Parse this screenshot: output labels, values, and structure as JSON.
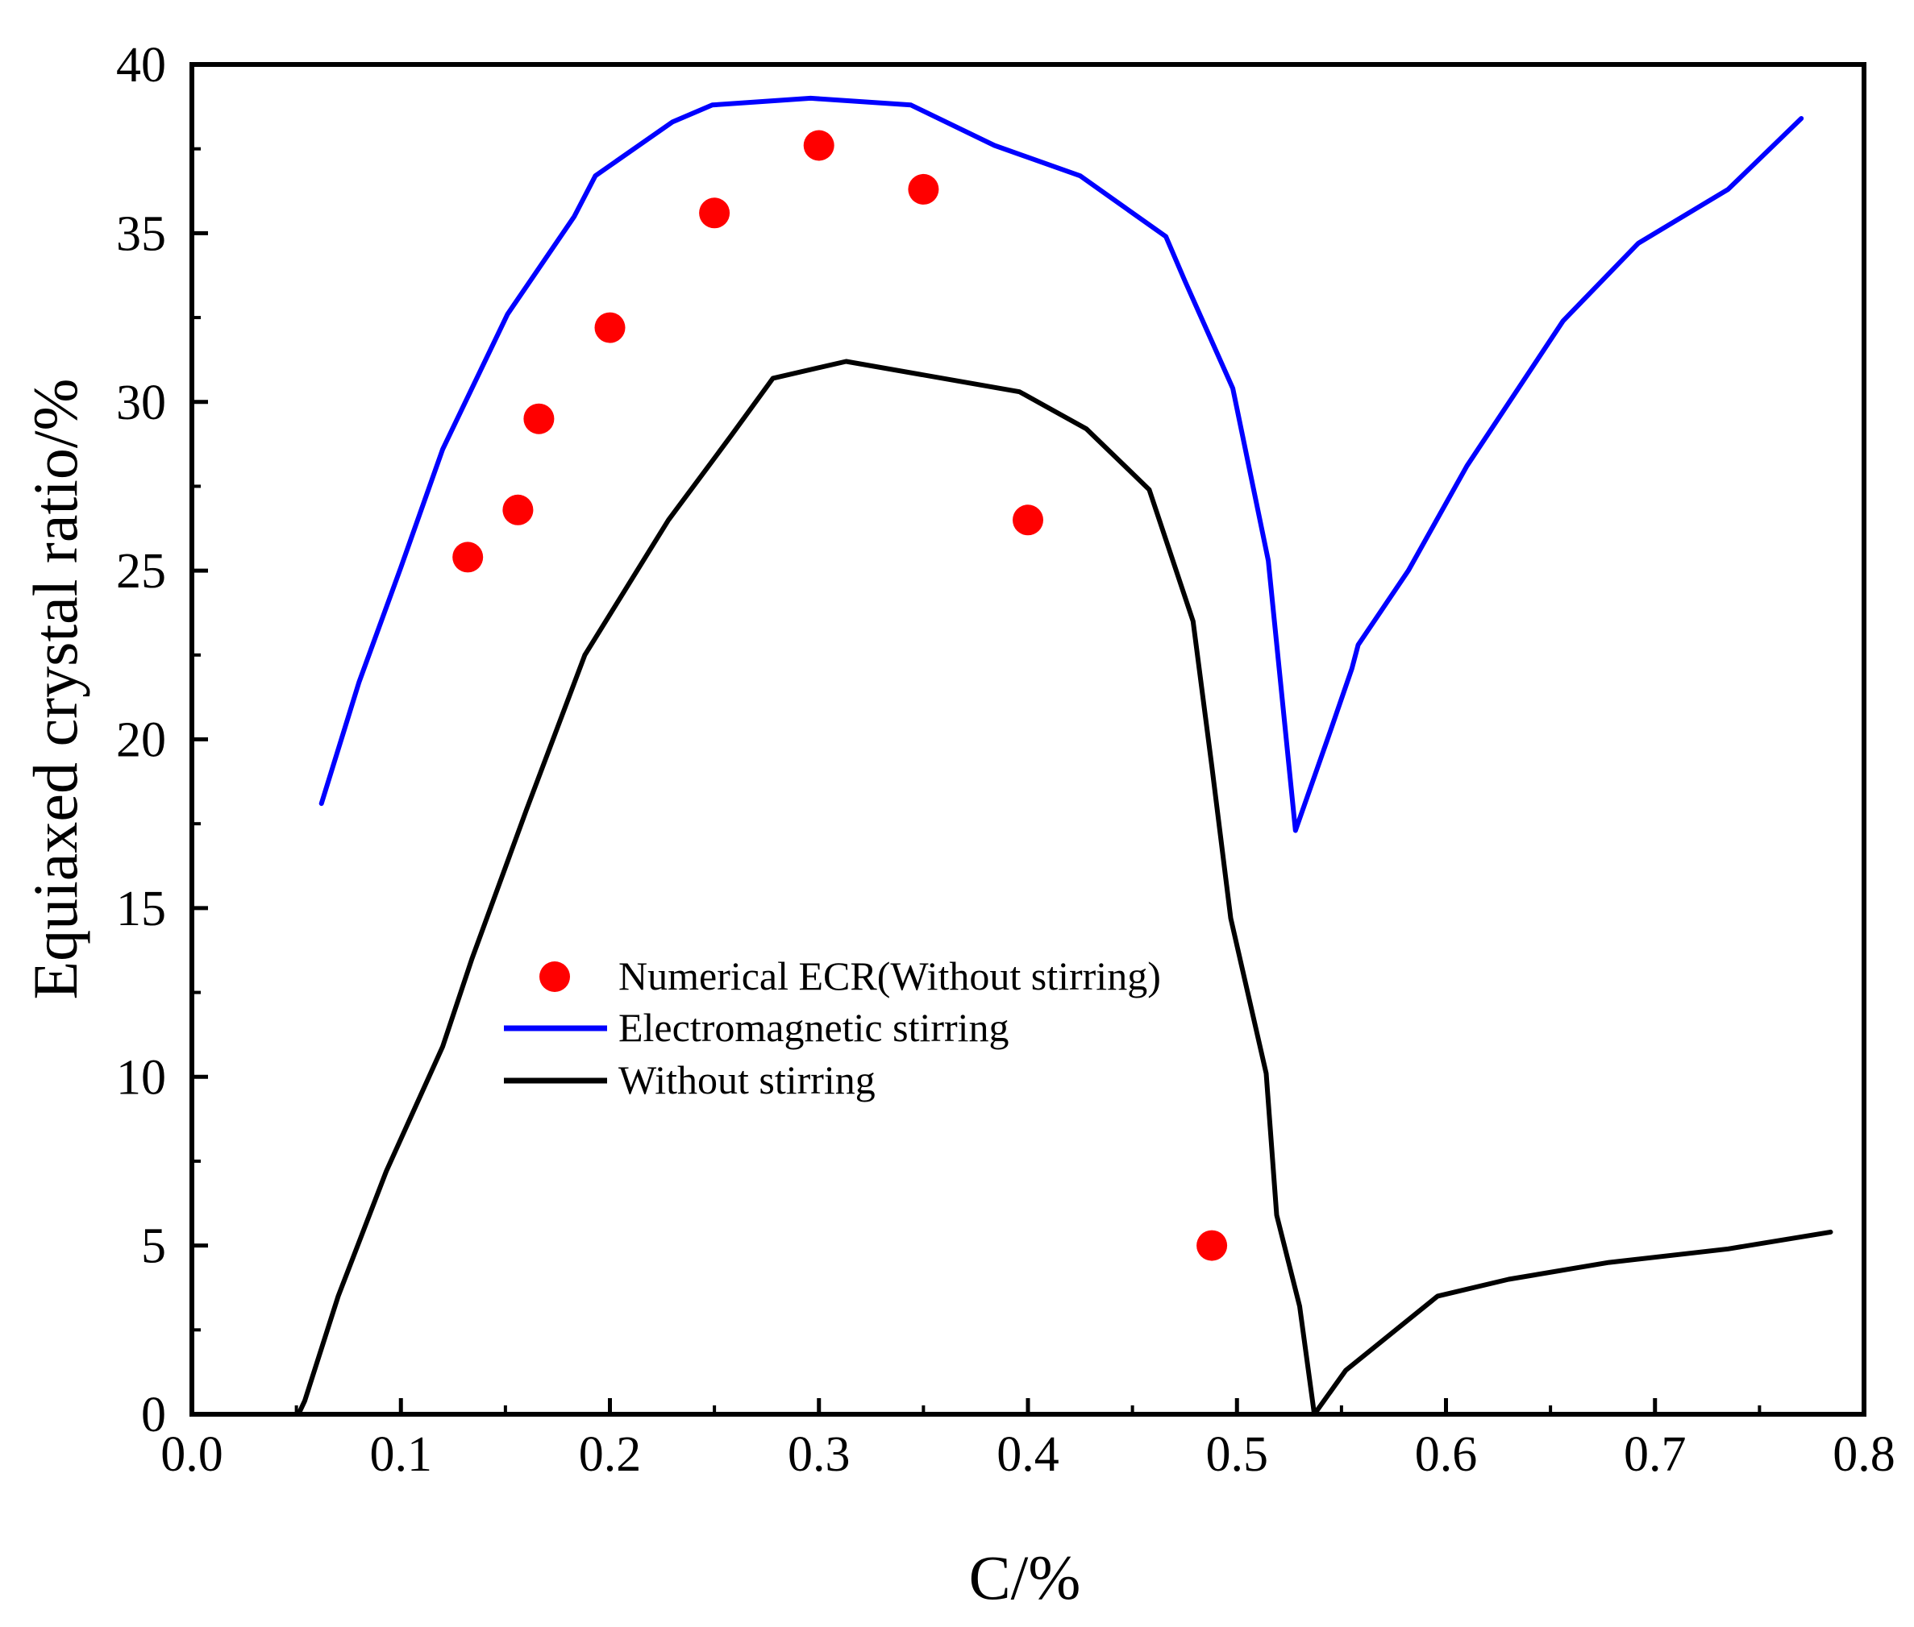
{
  "chart_data": {
    "type": "line",
    "title": "",
    "xlabel": "C/%",
    "ylabel": "Equiaxed crystal ratio/%",
    "xlim": [
      0.0,
      0.8
    ],
    "ylim": [
      0,
      40
    ],
    "xticks": [
      0.0,
      0.1,
      0.2,
      0.3,
      0.4,
      0.5,
      0.6,
      0.7,
      0.8
    ],
    "xtick_labels": [
      "0.0",
      "0.1",
      "0.2",
      "0.3",
      "0.4",
      "0.5",
      "0.6",
      "0.7",
      "0.8"
    ],
    "yticks": [
      0,
      5,
      10,
      15,
      20,
      25,
      30,
      35,
      40
    ],
    "ytick_labels": [
      "0",
      "5",
      "10",
      "15",
      "20",
      "25",
      "30",
      "35",
      "40"
    ],
    "grid": false,
    "legend_position": "center-left",
    "series": [
      {
        "name": "Numerical ECR(Without stirring)",
        "kind": "scatter",
        "color": "#ff0000",
        "x": [
          0.132,
          0.156,
          0.166,
          0.2,
          0.25,
          0.3,
          0.35,
          0.4,
          0.488
        ],
        "y": [
          25.4,
          26.8,
          29.5,
          32.2,
          35.6,
          37.6,
          36.3,
          26.5,
          5.0
        ]
      },
      {
        "name": "Electromagnetic stirring",
        "kind": "line",
        "color": "#0000ff",
        "x": [
          0.062,
          0.08,
          0.1,
          0.12,
          0.151,
          0.183,
          0.193,
          0.23,
          0.249,
          0.296,
          0.344,
          0.384,
          0.425,
          0.466,
          0.475,
          0.498,
          0.515,
          0.528,
          0.545,
          0.555,
          0.558,
          0.582,
          0.61,
          0.656,
          0.692,
          0.735,
          0.77
        ],
        "y": [
          18.1,
          21.7,
          25.1,
          28.6,
          32.6,
          35.5,
          36.7,
          38.3,
          38.8,
          39.0,
          38.8,
          37.6,
          36.7,
          34.9,
          33.6,
          30.4,
          25.3,
          17.3,
          20.3,
          22.1,
          22.8,
          25.0,
          28.1,
          32.4,
          34.7,
          36.3,
          38.4
        ]
      },
      {
        "name": "Without stirring",
        "kind": "line",
        "color": "#000000",
        "x": [
          0.051,
          0.054,
          0.07,
          0.093,
          0.12,
          0.134,
          0.16,
          0.188,
          0.228,
          0.258,
          0.278,
          0.313,
          0.396,
          0.428,
          0.458,
          0.479,
          0.488,
          0.497,
          0.514,
          0.519,
          0.53,
          0.537,
          0.552,
          0.596,
          0.63,
          0.678,
          0.735,
          0.784
        ],
        "y": [
          0.0,
          0.4,
          3.5,
          7.2,
          10.9,
          13.5,
          17.9,
          22.5,
          26.5,
          29.0,
          30.7,
          31.2,
          30.3,
          29.2,
          27.4,
          23.5,
          19.2,
          14.7,
          10.1,
          5.9,
          3.2,
          0.0,
          1.3,
          3.5,
          4.0,
          4.5,
          4.9,
          5.4
        ]
      }
    ]
  }
}
